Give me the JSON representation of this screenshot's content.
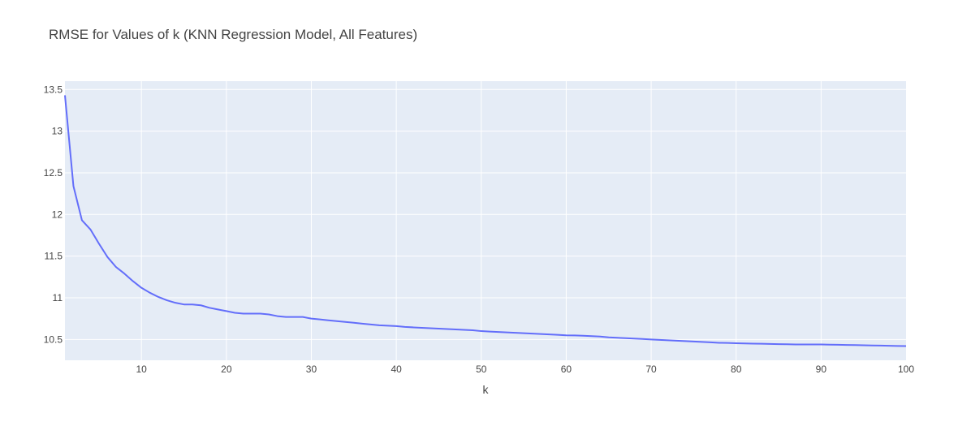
{
  "chart_data": {
    "type": "line",
    "title": "RMSE for Values of k (KNN Regression Model, All Features)",
    "xlabel": "k",
    "ylabel": "",
    "xlim": [
      1,
      100
    ],
    "ylim": [
      10.25,
      13.6
    ],
    "grid": true,
    "legend": "none",
    "x_ticks": [
      10,
      20,
      30,
      40,
      50,
      60,
      70,
      80,
      90,
      100
    ],
    "x_tick_labels": [
      "10",
      "20",
      "30",
      "40",
      "50",
      "60",
      "70",
      "80",
      "90",
      "100"
    ],
    "y_ticks": [
      10.5,
      11,
      11.5,
      12,
      12.5,
      13,
      13.5
    ],
    "y_tick_labels": [
      "10.5",
      "11",
      "11.5",
      "12",
      "12.5",
      "13",
      "13.5"
    ],
    "colors": {
      "plot_bg": "#e5ecf6",
      "grid": "#ffffff",
      "line": "#636efa",
      "text": "#444444"
    },
    "series": [
      {
        "x": [
          1,
          2,
          3,
          4,
          5,
          6,
          7,
          8,
          9,
          10,
          11,
          12,
          13,
          14,
          15,
          16,
          17,
          18,
          19,
          20,
          21,
          22,
          23,
          24,
          25,
          26,
          27,
          28,
          29,
          30,
          31,
          32,
          33,
          34,
          35,
          36,
          37,
          38,
          39,
          40,
          41,
          42,
          43,
          44,
          45,
          46,
          47,
          48,
          49,
          50,
          51,
          52,
          53,
          54,
          55,
          56,
          57,
          58,
          59,
          60,
          61,
          62,
          63,
          64,
          65,
          66,
          67,
          68,
          69,
          70,
          71,
          72,
          73,
          74,
          75,
          76,
          77,
          78,
          79,
          80,
          81,
          82,
          83,
          84,
          85,
          86,
          87,
          88,
          89,
          90,
          91,
          92,
          93,
          94,
          95,
          96,
          97,
          98,
          99,
          100
        ],
        "y": [
          13.43,
          12.34,
          11.93,
          11.82,
          11.65,
          11.49,
          11.37,
          11.29,
          11.2,
          11.12,
          11.06,
          11.01,
          10.97,
          10.94,
          10.92,
          10.92,
          10.91,
          10.88,
          10.86,
          10.84,
          10.82,
          10.81,
          10.81,
          10.81,
          10.8,
          10.78,
          10.77,
          10.77,
          10.77,
          10.75,
          10.74,
          10.73,
          10.72,
          10.71,
          10.7,
          10.69,
          10.68,
          10.67,
          10.665,
          10.66,
          10.65,
          10.645,
          10.64,
          10.635,
          10.63,
          10.625,
          10.62,
          10.615,
          10.61,
          10.6,
          10.595,
          10.59,
          10.585,
          10.58,
          10.575,
          10.57,
          10.565,
          10.56,
          10.555,
          10.55,
          10.548,
          10.545,
          10.54,
          10.535,
          10.525,
          10.52,
          10.515,
          10.51,
          10.505,
          10.5,
          10.495,
          10.49,
          10.485,
          10.48,
          10.475,
          10.47,
          10.465,
          10.46,
          10.458,
          10.455,
          10.452,
          10.45,
          10.448,
          10.446,
          10.444,
          10.442,
          10.44,
          10.44,
          10.44,
          10.44,
          10.438,
          10.436,
          10.434,
          10.432,
          10.43,
          10.428,
          10.426,
          10.424,
          10.422,
          10.42
        ]
      }
    ]
  }
}
